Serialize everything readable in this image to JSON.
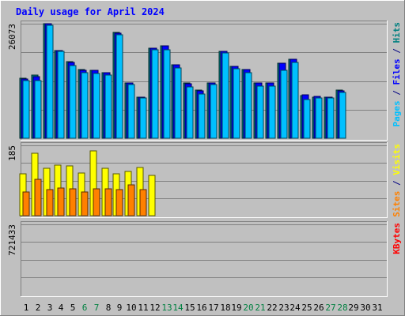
{
  "chart_data": {
    "type": "bar",
    "title": "Daily usage for April 2024",
    "categories": [
      "1",
      "2",
      "3",
      "4",
      "5",
      "6",
      "7",
      "8",
      "9",
      "10",
      "11",
      "12",
      "13",
      "14",
      "15",
      "16",
      "17",
      "18",
      "19",
      "20",
      "21",
      "22",
      "23",
      "24",
      "25",
      "26",
      "27",
      "28",
      "29",
      "30",
      "31"
    ],
    "weekend_days": [
      6,
      7,
      13,
      14,
      20,
      21,
      27,
      28
    ],
    "panels": [
      {
        "id": "hits",
        "max_label": "26073",
        "ymax": 26073,
        "side_label_parts": [
          {
            "text": "Pages",
            "color": "#00c0ff"
          },
          {
            "text": " / ",
            "color": "#000080"
          },
          {
            "text": "Files",
            "color": "#0000ff"
          },
          {
            "text": " / ",
            "color": "#000080"
          },
          {
            "text": "Hits",
            "color": "#008080"
          }
        ],
        "series": [
          {
            "name": "Hits",
            "color": "#008080",
            "values": [
              13700,
              14400,
              26000,
              20000,
              17500,
              15700,
              15500,
              15000,
              24100,
              12600,
              9400,
              20500,
              21000,
              16800,
              12500,
              10900,
              12600,
              19800,
              16400,
              15700,
              12500,
              12600,
              17000,
              18000,
              9700,
              9400,
              9400,
              10900,
              0,
              0,
              0
            ]
          },
          {
            "name": "Files",
            "color": "#0000ff",
            "values": [
              13400,
              14000,
              26000,
              20000,
              17300,
              15500,
              15500,
              14900,
              24000,
              12500,
              9300,
              20500,
              21000,
              16800,
              12400,
              10800,
              12500,
              19700,
              16400,
              15700,
              12500,
              12500,
              17000,
              18000,
              9800,
              9600,
              9400,
              10700,
              0,
              0,
              0
            ]
          },
          {
            "name": "Pages",
            "color": "#00c0ff",
            "values": [
              13200,
              13200,
              25800,
              19700,
              16500,
              14900,
              14700,
              14300,
              23600,
              12300,
              9200,
              20200,
              20200,
              16000,
              11700,
              10000,
              12200,
              19400,
              15900,
              15000,
              11900,
              11800,
              15400,
              17300,
              8900,
              9100,
              9100,
              10400,
              0,
              0,
              0
            ]
          }
        ]
      },
      {
        "id": "visits",
        "max_label": "185",
        "ymax": 185,
        "side_label_parts": [
          {
            "text": "Sites",
            "color": "#ff8000"
          },
          {
            "text": " / ",
            "color": "#000080"
          },
          {
            "text": "Visits",
            "color": "#ffff00"
          }
        ],
        "series": [
          {
            "name": "Visits",
            "color": "#ffff00",
            "values": [
              111,
              165,
              125,
              132,
              130,
              113,
              170,
              125,
              110,
              117,
              127,
              105,
              0,
              0,
              0,
              0,
              0,
              0,
              0,
              0,
              0,
              0,
              0,
              0,
              0,
              0,
              0,
              0,
              0,
              0,
              0
            ]
          },
          {
            "name": "Sites",
            "color": "#ff8000",
            "values": [
              63,
              95,
              69,
              73,
              71,
              63,
              71,
              70,
              69,
              82,
              68,
              0,
              0,
              0,
              0,
              0,
              0,
              0,
              0,
              0,
              0,
              0,
              0,
              0,
              0,
              0,
              0,
              0,
              0,
              0,
              0
            ]
          }
        ]
      },
      {
        "id": "kbytes",
        "max_label": "721433",
        "ymax": 721433,
        "side_label_parts": [
          {
            "text": "KBytes",
            "color": "#ff0000"
          }
        ],
        "series": [
          {
            "name": "KBytes",
            "color": "#ff0000",
            "values": [
              0,
              0,
              0,
              0,
              0,
              0,
              0,
              0,
              0,
              0,
              0,
              0,
              0,
              0,
              0,
              0,
              0,
              0,
              0,
              0,
              0,
              0,
              0,
              0,
              0,
              0,
              0,
              0,
              0,
              0,
              0
            ]
          }
        ]
      }
    ]
  }
}
